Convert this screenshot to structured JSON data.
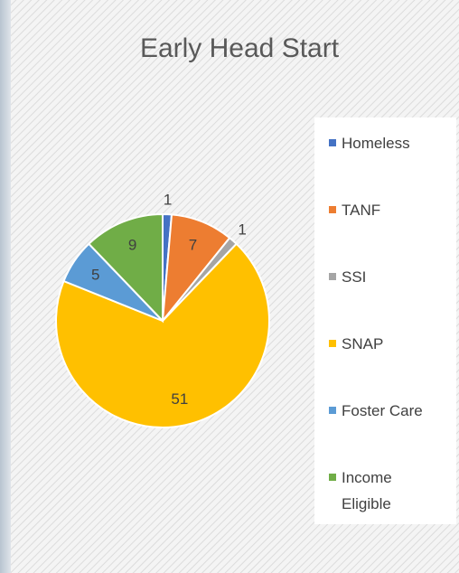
{
  "chart_data": {
    "type": "pie",
    "title": "Early Head Start",
    "categories": [
      "Homeless",
      "TANF",
      "SSI",
      "SNAP",
      "Foster Care",
      "Income Eligible"
    ],
    "values": [
      1,
      7,
      1,
      51,
      5,
      9
    ],
    "colors": [
      "#4472c4",
      "#ed7d31",
      "#a5a5a5",
      "#ffc000",
      "#5b9bd5",
      "#70ad47"
    ],
    "legend": "right"
  }
}
